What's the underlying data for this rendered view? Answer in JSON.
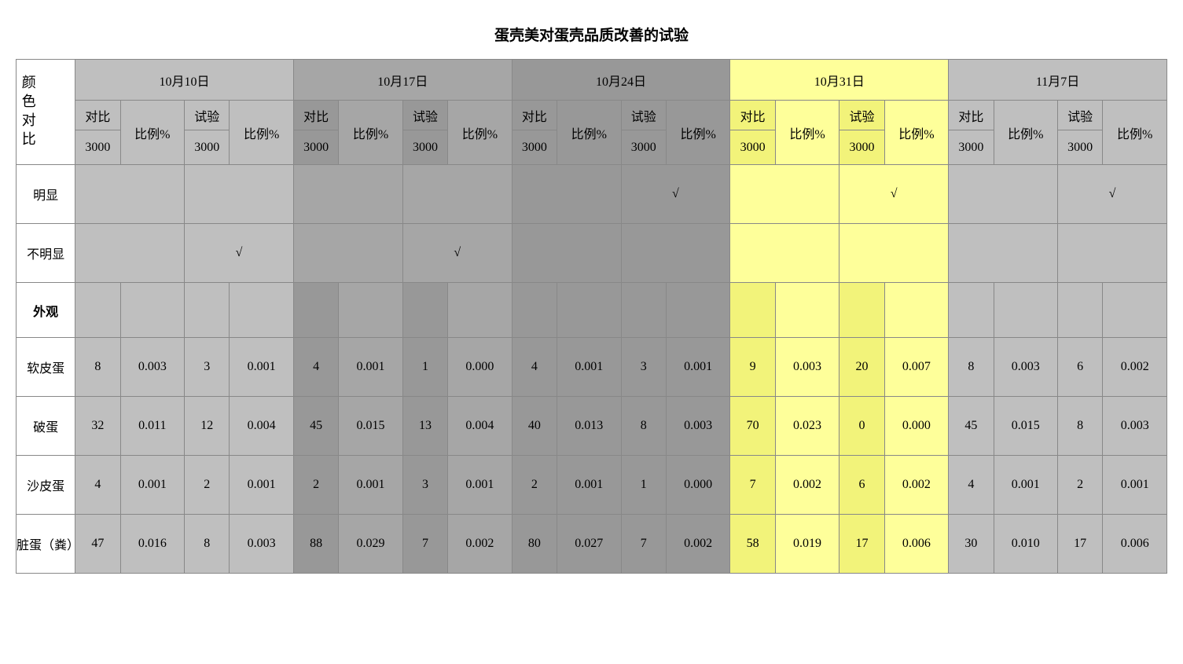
{
  "title": "蛋壳美对蛋壳品质改善的试验",
  "colors": {
    "gray_light": "#bfbfbf",
    "gray_mid": "#a6a6a6",
    "gray_dark": "#989898",
    "yellow_light": "#feff9a",
    "yellow_mid": "#f2f37a",
    "white": "#ffffff"
  },
  "dates": [
    "10月10日",
    "10月17日",
    "10月24日",
    "10月31日",
    "11月7日"
  ],
  "date_bg": [
    "#bfbfbf",
    "#a6a6a6",
    "#989898",
    "#feff9a",
    "#bfbfbf"
  ],
  "sub_labels": {
    "control": "对比",
    "ratio": "比例%",
    "test": "试验",
    "n3000": "3000"
  },
  "sub_bg_per_date": [
    {
      "c": "#bfbfbf",
      "r": "#bfbfbf",
      "t": "#bfbfbf",
      "n": "#bfbfbf"
    },
    {
      "c": "#989898",
      "r": "#a6a6a6",
      "t": "#989898",
      "n": "#989898"
    },
    {
      "c": "#989898",
      "r": "#989898",
      "t": "#989898",
      "n": "#989898"
    },
    {
      "c": "#f2f37a",
      "r": "#feff9a",
      "t": "#f2f37a",
      "n": "#f2f37a"
    },
    {
      "c": "#bfbfbf",
      "r": "#bfbfbf",
      "t": "#bfbfbf",
      "n": "#bfbfbf"
    }
  ],
  "row_header_label": "颜色对比",
  "rows": {
    "obvious": {
      "label": "明显",
      "cells": [
        {
          "span": 2,
          "text": "",
          "bg": "#bfbfbf"
        },
        {
          "span": 2,
          "text": "",
          "bg": "#bfbfbf"
        },
        {
          "span": 2,
          "text": "",
          "bg": "#a6a6a6"
        },
        {
          "span": 2,
          "text": "",
          "bg": "#a6a6a6"
        },
        {
          "span": 2,
          "text": "",
          "bg": "#989898"
        },
        {
          "span": 2,
          "text": "√",
          "bg": "#989898"
        },
        {
          "span": 2,
          "text": "",
          "bg": "#feff9a"
        },
        {
          "span": 2,
          "text": "√",
          "bg": "#feff9a"
        },
        {
          "span": 2,
          "text": "",
          "bg": "#bfbfbf"
        },
        {
          "span": 2,
          "text": "√",
          "bg": "#bfbfbf"
        }
      ]
    },
    "not_obvious": {
      "label": "不明显",
      "cells": [
        {
          "span": 2,
          "text": "",
          "bg": "#bfbfbf"
        },
        {
          "span": 2,
          "text": "√",
          "bg": "#bfbfbf"
        },
        {
          "span": 2,
          "text": "",
          "bg": "#a6a6a6"
        },
        {
          "span": 2,
          "text": "√",
          "bg": "#a6a6a6"
        },
        {
          "span": 2,
          "text": "",
          "bg": "#989898"
        },
        {
          "span": 2,
          "text": "",
          "bg": "#989898"
        },
        {
          "span": 2,
          "text": "",
          "bg": "#feff9a"
        },
        {
          "span": 2,
          "text": "",
          "bg": "#feff9a"
        },
        {
          "span": 2,
          "text": "",
          "bg": "#bfbfbf"
        },
        {
          "span": 2,
          "text": "",
          "bg": "#bfbfbf"
        }
      ]
    },
    "appearance": {
      "label": "外观",
      "cells": [
        {
          "span": 1,
          "text": "",
          "bg": "#bfbfbf"
        },
        {
          "span": 1,
          "text": "",
          "bg": "#bfbfbf"
        },
        {
          "span": 1,
          "text": "",
          "bg": "#bfbfbf"
        },
        {
          "span": 1,
          "text": "",
          "bg": "#bfbfbf"
        },
        {
          "span": 1,
          "text": "",
          "bg": "#989898"
        },
        {
          "span": 1,
          "text": "",
          "bg": "#a6a6a6"
        },
        {
          "span": 1,
          "text": "",
          "bg": "#989898"
        },
        {
          "span": 1,
          "text": "",
          "bg": "#a6a6a6"
        },
        {
          "span": 1,
          "text": "",
          "bg": "#989898"
        },
        {
          "span": 1,
          "text": "",
          "bg": "#989898"
        },
        {
          "span": 1,
          "text": "",
          "bg": "#989898"
        },
        {
          "span": 1,
          "text": "",
          "bg": "#989898"
        },
        {
          "span": 1,
          "text": "",
          "bg": "#f2f37a"
        },
        {
          "span": 1,
          "text": "",
          "bg": "#feff9a"
        },
        {
          "span": 1,
          "text": "",
          "bg": "#f2f37a"
        },
        {
          "span": 1,
          "text": "",
          "bg": "#feff9a"
        },
        {
          "span": 1,
          "text": "",
          "bg": "#bfbfbf"
        },
        {
          "span": 1,
          "text": "",
          "bg": "#bfbfbf"
        },
        {
          "span": 1,
          "text": "",
          "bg": "#bfbfbf"
        },
        {
          "span": 1,
          "text": "",
          "bg": "#bfbfbf"
        }
      ]
    }
  },
  "data_row_labels": [
    "软皮蛋",
    "破蛋",
    "沙皮蛋",
    "脏蛋（粪）"
  ],
  "data_rows": [
    [
      "8",
      "0.003",
      "3",
      "0.001",
      "4",
      "0.001",
      "1",
      "0.000",
      "4",
      "0.001",
      "3",
      "0.001",
      "9",
      "0.003",
      "20",
      "0.007",
      "8",
      "0.003",
      "6",
      "0.002"
    ],
    [
      "32",
      "0.011",
      "12",
      "0.004",
      "45",
      "0.015",
      "13",
      "0.004",
      "40",
      "0.013",
      "8",
      "0.003",
      "70",
      "0.023",
      "0",
      "0.000",
      "45",
      "0.015",
      "8",
      "0.003"
    ],
    [
      "4",
      "0.001",
      "2",
      "0.001",
      "2",
      "0.001",
      "3",
      "0.001",
      "2",
      "0.001",
      "1",
      "0.000",
      "7",
      "0.002",
      "6",
      "0.002",
      "4",
      "0.001",
      "2",
      "0.001"
    ],
    [
      "47",
      "0.016",
      "8",
      "0.003",
      "88",
      "0.029",
      "7",
      "0.002",
      "80",
      "0.027",
      "7",
      "0.002",
      "58",
      "0.019",
      "17",
      "0.006",
      "30",
      "0.010",
      "17",
      "0.006"
    ]
  ],
  "data_bg": [
    "#bfbfbf",
    "#bfbfbf",
    "#bfbfbf",
    "#bfbfbf",
    "#989898",
    "#a6a6a6",
    "#989898",
    "#a6a6a6",
    "#989898",
    "#989898",
    "#989898",
    "#989898",
    "#f2f37a",
    "#feff9a",
    "#f2f37a",
    "#feff9a",
    "#bfbfbf",
    "#bfbfbf",
    "#bfbfbf",
    "#bfbfbf"
  ],
  "col_widths": {
    "label": 72,
    "narrow": 55,
    "wide": 78
  }
}
